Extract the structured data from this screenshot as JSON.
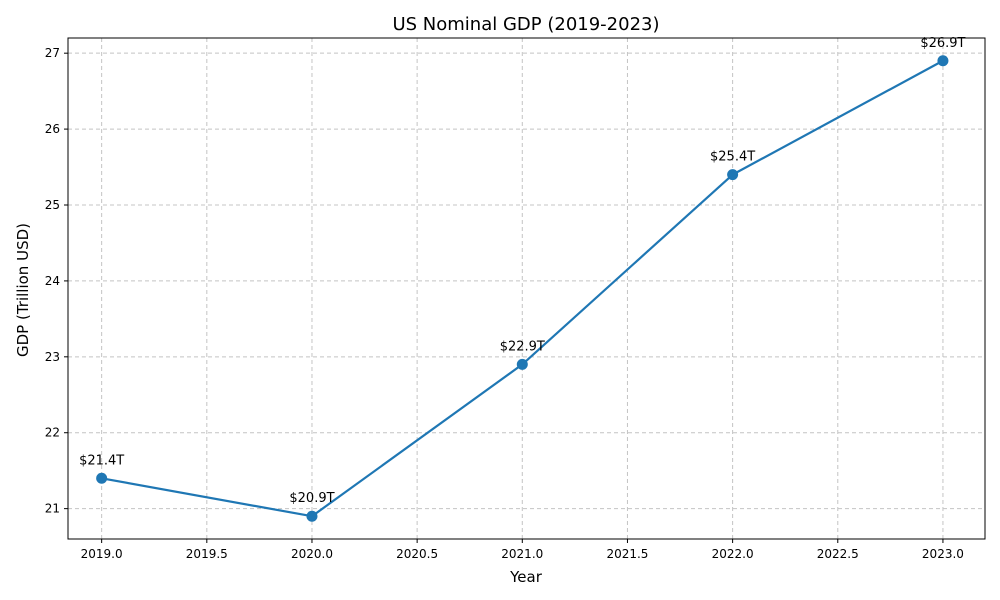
{
  "chart_data": {
    "type": "line",
    "title": "US Nominal GDP (2019-2023)",
    "xlabel": "Year",
    "ylabel": "GDP (Trillion USD)",
    "x": [
      2019,
      2020,
      2021,
      2022,
      2023
    ],
    "series": [
      {
        "values": [
          21.4,
          20.9,
          22.9,
          25.4,
          26.9
        ],
        "labels": [
          "$21.4T",
          "$20.9T",
          "$22.9T",
          "$25.4T",
          "$26.9T"
        ],
        "color": "#1f77b4"
      }
    ],
    "xlim": [
      2018.84,
      2023.2
    ],
    "ylim": [
      20.6,
      27.2
    ],
    "x_ticks": [
      "2019.0",
      "2019.5",
      "2020.0",
      "2020.5",
      "2021.0",
      "2021.5",
      "2022.0",
      "2022.5",
      "2023.0"
    ],
    "y_ticks": [
      "21",
      "22",
      "23",
      "24",
      "25",
      "26",
      "27"
    ],
    "grid": true,
    "legend": "none"
  }
}
